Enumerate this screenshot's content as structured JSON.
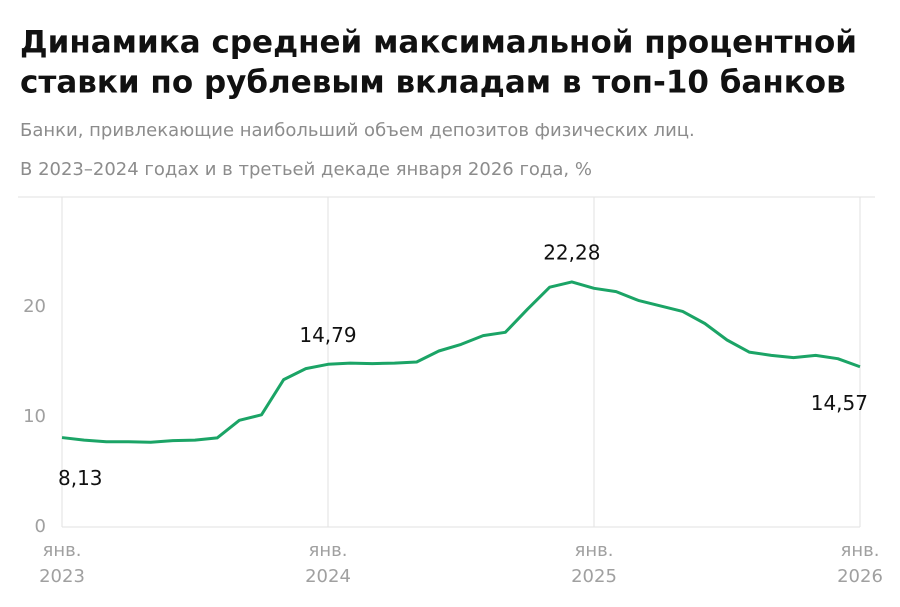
{
  "chart_data": {
    "type": "line",
    "title": [
      "Динамика средней максимальной процентной",
      "ставки по рублевым вкладам в топ-10 банков"
    ],
    "subtitle": [
      "Банки, привлекающие наибольший объем депозитов физических лиц.",
      "В 2023–2024 годах и в третьей декаде января 2026 года, %"
    ],
    "x": [
      "2023-01",
      "2023-02",
      "2023-03",
      "2023-04",
      "2023-05",
      "2023-06",
      "2023-07",
      "2023-08",
      "2023-09",
      "2023-10",
      "2023-11",
      "2023-12",
      "2024-01",
      "2024-02",
      "2024-03",
      "2024-04",
      "2024-05",
      "2024-06",
      "2024-07",
      "2024-08",
      "2024-09",
      "2024-10",
      "2024-11",
      "2024-12",
      "2025-01",
      "2025-02",
      "2025-03",
      "2025-04",
      "2025-05",
      "2025-06",
      "2025-07",
      "2025-08",
      "2025-09",
      "2025-10",
      "2025-11",
      "2025-12",
      "2026-01"
    ],
    "series": [
      {
        "color": "#1ba466",
        "values": [
          8.13,
          7.9,
          7.75,
          7.75,
          7.7,
          7.85,
          7.9,
          8.1,
          9.7,
          10.2,
          13.4,
          14.4,
          14.79,
          14.9,
          14.85,
          14.9,
          15.0,
          16.0,
          16.6,
          17.4,
          17.7,
          19.8,
          21.8,
          22.28,
          21.7,
          21.4,
          20.6,
          20.1,
          19.6,
          18.5,
          17.0,
          15.9,
          15.6,
          15.4,
          15.6,
          15.3,
          14.57
        ],
        "value_labels": [
          "8,13",
          null,
          null,
          null,
          null,
          null,
          null,
          null,
          null,
          null,
          null,
          null,
          "14,79",
          null,
          null,
          null,
          null,
          null,
          null,
          null,
          null,
          null,
          null,
          "22,28",
          null,
          null,
          null,
          null,
          null,
          null,
          null,
          null,
          null,
          null,
          null,
          null,
          "14,57"
        ]
      }
    ],
    "xlim": [
      "2023-01",
      "2026-01"
    ],
    "xticks": [
      {
        "value": "2023-01",
        "label": [
          "янв.",
          "2023"
        ]
      },
      {
        "value": "2024-01",
        "label": [
          "янв.",
          "2024"
        ]
      },
      {
        "value": "2025-01",
        "label": [
          "янв.",
          "2025"
        ]
      },
      {
        "value": "2026-01",
        "label": [
          "янв.",
          "2026"
        ]
      }
    ],
    "ylim": [
      0,
      30
    ],
    "yticks": [
      0,
      10,
      20
    ],
    "grid": "x"
  }
}
